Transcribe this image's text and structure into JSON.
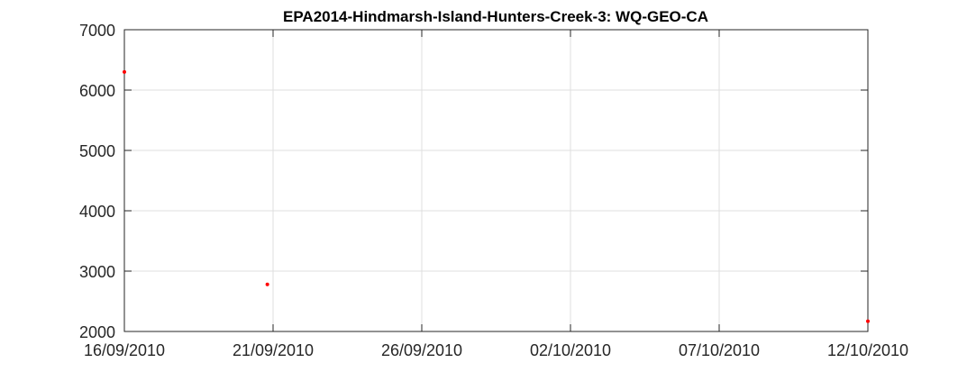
{
  "chart_data": {
    "type": "scatter",
    "title": "EPA2014-Hindmarsh-Island-Hunters-Creek-3: WQ-GEO-CA",
    "xlabel": "",
    "ylabel": "",
    "x_tick_labels": [
      "16/09/2010",
      "21/09/2010",
      "26/09/2010",
      "02/10/2010",
      "07/10/2010",
      "12/10/2010"
    ],
    "y_ticks": [
      2000,
      3000,
      4000,
      5000,
      6000,
      7000
    ],
    "ylim": [
      2000,
      7000
    ],
    "xlim": [
      "16/09/2010",
      "12/10/2010"
    ],
    "grid": true,
    "marker_color": "#ff0000",
    "points": [
      {
        "x": "16/09/2010",
        "y": 6300
      },
      {
        "x": "21/09/2010",
        "y": 2780
      },
      {
        "x": "12/10/2010",
        "y": 2170
      }
    ]
  }
}
